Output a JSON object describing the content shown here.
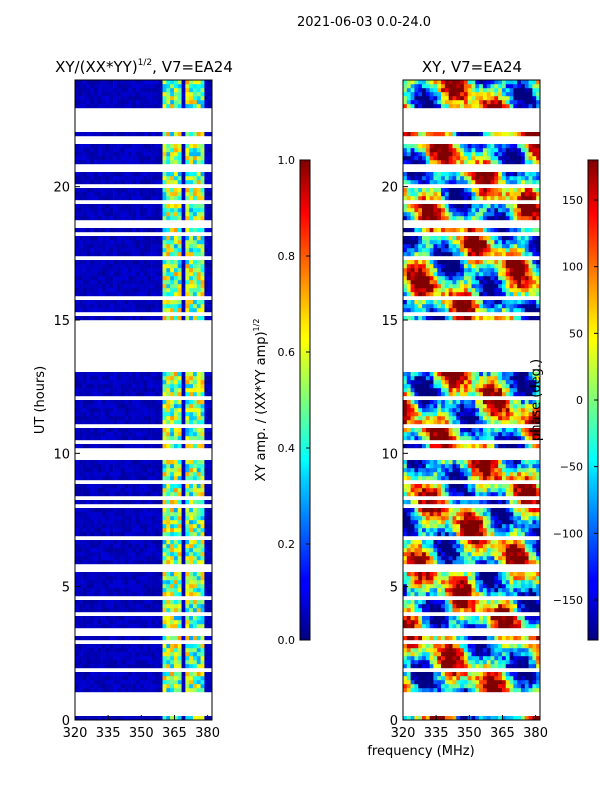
{
  "figure": {
    "suptitle": "2021-06-03 0.0-24.0",
    "xlabel_shared": "frequency (MHz)"
  },
  "chart_data": [
    {
      "type": "heatmap",
      "title_main": "XY/(XX*YY)",
      "title_sup": "1/2",
      "title_suffix": ", V7=EA24",
      "xlabel": "",
      "ylabel": "UT (hours)",
      "xlim": [
        320,
        382
      ],
      "ylim": [
        0,
        24
      ],
      "xticks": [
        "320",
        "335",
        "350",
        "365",
        "380"
      ],
      "xtick_values": [
        320,
        335,
        350,
        365,
        380
      ],
      "yticks": [
        "0",
        "5",
        "10",
        "15",
        "20"
      ],
      "ytick_values": [
        0,
        5,
        10,
        15,
        20
      ],
      "colormap": "jet",
      "flagged_ut_ranges": [
        [
          0.2,
          1.0
        ],
        [
          13.1,
          15.0
        ],
        [
          20.6,
          20.9
        ],
        [
          22.1,
          23.0
        ]
      ],
      "bright_channel_bands_mhz": [
        [
          360,
          365
        ],
        [
          365,
          369
        ],
        [
          369.5,
          373
        ],
        [
          374,
          378
        ]
      ],
      "colorbar": {
        "label_main": "XY amp. / (XX*YY amp)",
        "label_sup": "1/2",
        "range": [
          0.0,
          1.0
        ],
        "ticks": [
          "0.0",
          "0.2",
          "0.4",
          "0.6",
          "0.8",
          "1.0"
        ],
        "tick_values": [
          0.0,
          0.2,
          0.4,
          0.6,
          0.8,
          1.0
        ]
      }
    },
    {
      "type": "heatmap",
      "title": "XY, V7=EA24",
      "xlabel": "frequency (MHz)",
      "ylabel": "",
      "xlim": [
        320,
        382
      ],
      "ylim": [
        0,
        24
      ],
      "xticks": [
        "320",
        "335",
        "350",
        "365",
        "380"
      ],
      "xtick_values": [
        320,
        335,
        350,
        365,
        380
      ],
      "yticks": [
        "0",
        "5",
        "10",
        "15",
        "20"
      ],
      "ytick_values": [
        0,
        5,
        10,
        15,
        20
      ],
      "colormap": "jet",
      "flagged_ut_ranges": [
        [
          0.2,
          1.0
        ],
        [
          13.1,
          15.0
        ],
        [
          20.6,
          20.9
        ],
        [
          22.1,
          23.0
        ]
      ],
      "colorbar": {
        "label": "phase (deg.)",
        "range": [
          -180,
          180
        ],
        "ticks": [
          "−150",
          "−100",
          "−50",
          "0",
          "50",
          "100",
          "150"
        ],
        "tick_values": [
          -150,
          -100,
          -50,
          0,
          50,
          100,
          150
        ]
      }
    }
  ]
}
